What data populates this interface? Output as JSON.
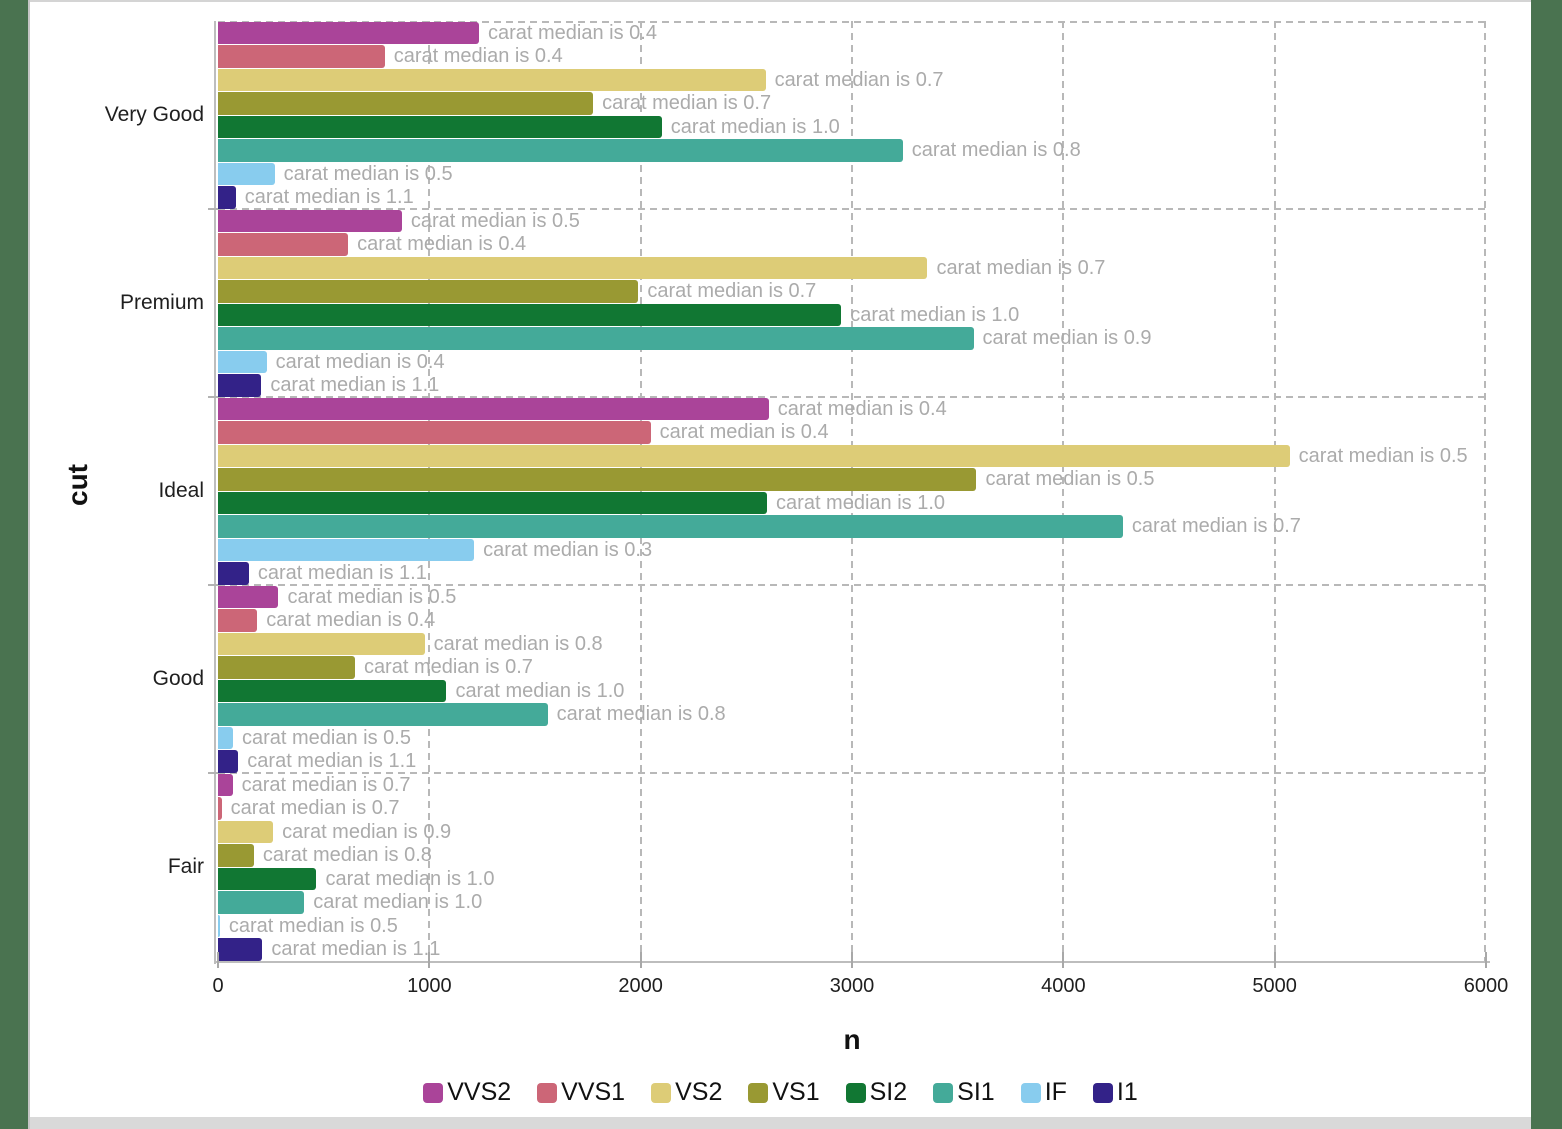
{
  "window": {
    "side_strip_color": "#4a7350",
    "top_line_color": "#d4d4d4",
    "bottom_bar_color": "#d9d9d9"
  },
  "chart_data": {
    "type": "bar",
    "orientation": "horizontal",
    "xlabel": "n",
    "ylabel": "cut",
    "xlim": [
      0,
      6000
    ],
    "x_ticks": [
      "0",
      "1000",
      "2000",
      "3000",
      "4000",
      "5000",
      "6000"
    ],
    "grid": "dashed",
    "legend_position": "bottom",
    "colors": {
      "grid": "#b8b8b8",
      "axis_line": "#bdbdbd",
      "bar_label": "#ababab",
      "tick_text": "#1f1f1f"
    },
    "series": [
      {
        "name": "VVS2",
        "color": "#AA4499"
      },
      {
        "name": "VVS1",
        "color": "#CC6677"
      },
      {
        "name": "VS2",
        "color": "#DDCC77"
      },
      {
        "name": "VS1",
        "color": "#999933"
      },
      {
        "name": "SI2",
        "color": "#117733"
      },
      {
        "name": "SI1",
        "color": "#44AA99"
      },
      {
        "name": "IF",
        "color": "#88CCEE"
      },
      {
        "name": "I1",
        "color": "#332288"
      }
    ],
    "groups": [
      {
        "cut": "Very Good",
        "bars": [
          {
            "clarity": "VVS2",
            "n": 1235,
            "median": "0.4",
            "label": "carat median is 0.4"
          },
          {
            "clarity": "VVS1",
            "n": 789,
            "median": "0.4",
            "label": "carat median is 0.4"
          },
          {
            "clarity": "VS2",
            "n": 2591,
            "median": "0.7",
            "label": "carat median is 0.7"
          },
          {
            "clarity": "VS1",
            "n": 1775,
            "median": "0.7",
            "label": "carat median is 0.7"
          },
          {
            "clarity": "SI2",
            "n": 2100,
            "median": "1.0",
            "label": "carat median is 1.0"
          },
          {
            "clarity": "SI1",
            "n": 3240,
            "median": "0.8",
            "label": "carat median is 0.8"
          },
          {
            "clarity": "IF",
            "n": 268,
            "median": "0.5",
            "label": "carat median is 0.5"
          },
          {
            "clarity": "I1",
            "n": 84,
            "median": "1.1",
            "label": "carat median is 1.1"
          }
        ]
      },
      {
        "cut": "Premium",
        "bars": [
          {
            "clarity": "VVS2",
            "n": 870,
            "median": "0.5",
            "label": "carat median is 0.5"
          },
          {
            "clarity": "VVS1",
            "n": 616,
            "median": "0.4",
            "label": "carat median is 0.4"
          },
          {
            "clarity": "VS2",
            "n": 3357,
            "median": "0.7",
            "label": "carat median is 0.7"
          },
          {
            "clarity": "VS1",
            "n": 1989,
            "median": "0.7",
            "label": "carat median is 0.7"
          },
          {
            "clarity": "SI2",
            "n": 2949,
            "median": "1.0",
            "label": "carat median is 1.0"
          },
          {
            "clarity": "SI1",
            "n": 3575,
            "median": "0.9",
            "label": "carat median is 0.9"
          },
          {
            "clarity": "IF",
            "n": 230,
            "median": "0.4",
            "label": "carat median is 0.4"
          },
          {
            "clarity": "I1",
            "n": 205,
            "median": "1.1",
            "label": "carat median is 1.1"
          }
        ]
      },
      {
        "cut": "Ideal",
        "bars": [
          {
            "clarity": "VVS2",
            "n": 2606,
            "median": "0.4",
            "label": "carat median is 0.4"
          },
          {
            "clarity": "VVS1",
            "n": 2047,
            "median": "0.4",
            "label": "carat median is 0.4"
          },
          {
            "clarity": "VS2",
            "n": 5071,
            "median": "0.5",
            "label": "carat median is 0.5"
          },
          {
            "clarity": "VS1",
            "n": 3589,
            "median": "0.5",
            "label": "carat median is 0.5"
          },
          {
            "clarity": "SI2",
            "n": 2598,
            "median": "1.0",
            "label": "carat median is 1.0"
          },
          {
            "clarity": "SI1",
            "n": 4282,
            "median": "0.7",
            "label": "carat median is 0.7"
          },
          {
            "clarity": "IF",
            "n": 1212,
            "median": "0.3",
            "label": "carat median is 0.3"
          },
          {
            "clarity": "I1",
            "n": 146,
            "median": "1.1",
            "label": "carat median is 1.1"
          }
        ]
      },
      {
        "cut": "Good",
        "bars": [
          {
            "clarity": "VVS2",
            "n": 286,
            "median": "0.5",
            "label": "carat median is 0.5"
          },
          {
            "clarity": "VVS1",
            "n": 186,
            "median": "0.4",
            "label": "carat median is 0.4"
          },
          {
            "clarity": "VS2",
            "n": 978,
            "median": "0.8",
            "label": "carat median is 0.8"
          },
          {
            "clarity": "VS1",
            "n": 648,
            "median": "0.7",
            "label": "carat median is 0.7"
          },
          {
            "clarity": "SI2",
            "n": 1081,
            "median": "1.0",
            "label": "carat median is 1.0"
          },
          {
            "clarity": "SI1",
            "n": 1560,
            "median": "0.8",
            "label": "carat median is 0.8"
          },
          {
            "clarity": "IF",
            "n": 71,
            "median": "0.5",
            "label": "carat median is 0.5"
          },
          {
            "clarity": "I1",
            "n": 96,
            "median": "1.1",
            "label": "carat median is 1.1"
          }
        ]
      },
      {
        "cut": "Fair",
        "bars": [
          {
            "clarity": "VVS2",
            "n": 69,
            "median": "0.7",
            "label": "carat median is 0.7"
          },
          {
            "clarity": "VVS1",
            "n": 17,
            "median": "0.7",
            "label": "carat median is 0.7"
          },
          {
            "clarity": "VS2",
            "n": 261,
            "median": "0.9",
            "label": "carat median is 0.9"
          },
          {
            "clarity": "VS1",
            "n": 170,
            "median": "0.8",
            "label": "carat median is 0.8"
          },
          {
            "clarity": "SI2",
            "n": 466,
            "median": "1.0",
            "label": "carat median is 1.0"
          },
          {
            "clarity": "SI1",
            "n": 408,
            "median": "1.0",
            "label": "carat median is 1.0"
          },
          {
            "clarity": "IF",
            "n": 9,
            "median": "0.5",
            "label": "carat median is 0.5"
          },
          {
            "clarity": "I1",
            "n": 210,
            "median": "1.1",
            "label": "carat median is 1.1"
          }
        ]
      }
    ]
  }
}
